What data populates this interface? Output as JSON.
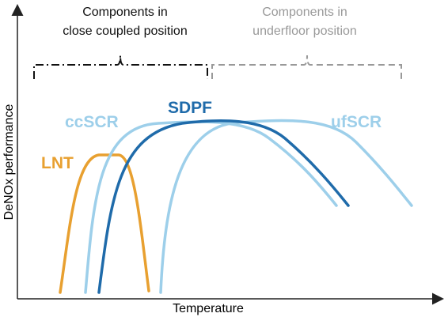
{
  "groups": [
    {
      "label_lines": [
        "Components in",
        "close coupled position"
      ]
    },
    {
      "label_lines": [
        "Components in",
        "underfloor position"
      ]
    }
  ],
  "curves": [
    {
      "label": "LNT"
    },
    {
      "label": "ccSCR"
    },
    {
      "label": "SDPF"
    },
    {
      "label": "ufSCR"
    }
  ],
  "axes": {
    "y_label": "DeNOx performance",
    "x_label": "Temperature"
  }
}
